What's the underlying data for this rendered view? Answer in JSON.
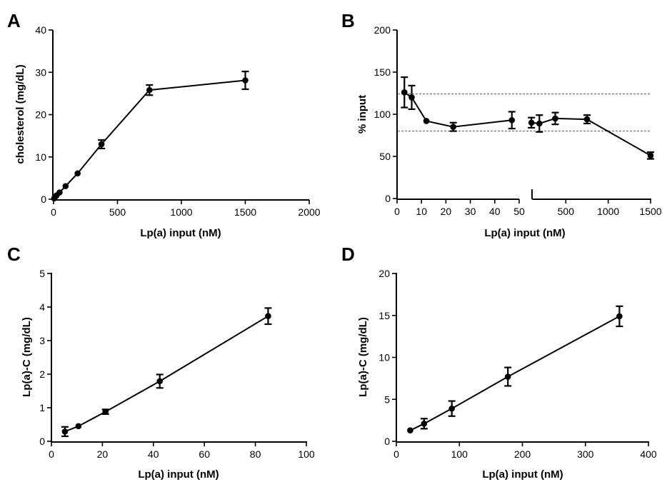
{
  "chart_data": [
    {
      "panel": "A",
      "type": "line",
      "xlabel": "Lp(a) input (nM)",
      "ylabel": "cholesterol (mg/dL)",
      "xlim": [
        0,
        2000
      ],
      "ylim": [
        0,
        40
      ],
      "xticks": [
        0,
        500,
        1000,
        1500,
        2000
      ],
      "yticks": [
        0,
        10,
        20,
        30,
        40
      ],
      "series": [
        {
          "x": [
            5,
            11,
            23,
            47,
            94,
            188,
            375,
            750,
            1500
          ],
          "y": [
            0.2,
            0.5,
            0.9,
            1.6,
            3.1,
            6.1,
            13.0,
            25.8,
            28.1
          ],
          "err": [
            0.1,
            0.1,
            0.2,
            0.3,
            0.3,
            0.4,
            1.0,
            1.2,
            2.1
          ]
        }
      ]
    },
    {
      "panel": "B",
      "type": "line",
      "xlabel": "Lp(a) input (nM)",
      "ylabel": "% input",
      "ylim": [
        0,
        200
      ],
      "yticks": [
        0,
        50,
        100,
        150,
        200
      ],
      "reference_lines": [
        80,
        124
      ],
      "segments": [
        {
          "xlim": [
            0,
            50
          ],
          "xticks": [
            0,
            10,
            20,
            30,
            40,
            50
          ],
          "x": [
            3,
            6,
            12,
            23,
            47
          ],
          "y": [
            126,
            120,
            92,
            85,
            93
          ],
          "err": [
            18,
            14,
            2,
            5,
            10
          ]
        },
        {
          "xlim": [
            0,
            1500
          ],
          "xticks": [
            500,
            1000,
            1500
          ],
          "x": [
            94,
            188,
            375,
            750,
            1500
          ],
          "y": [
            90,
            89,
            95,
            94,
            51
          ],
          "err": [
            6,
            10,
            7,
            5,
            4
          ]
        }
      ]
    },
    {
      "panel": "C",
      "type": "line",
      "xlabel": "Lp(a) input (nM)",
      "ylabel": "Lp(a)-C  (mg/dL)",
      "xlim": [
        0,
        100
      ],
      "ylim": [
        0,
        5
      ],
      "xticks": [
        0,
        20,
        40,
        60,
        80,
        100
      ],
      "yticks": [
        0,
        1,
        2,
        3,
        4,
        5
      ],
      "series": [
        {
          "x": [
            5.3,
            10.6,
            21.2,
            42.5,
            85
          ],
          "y": [
            0.29,
            0.45,
            0.88,
            1.79,
            3.73
          ],
          "err": [
            0.14,
            0.03,
            0.07,
            0.2,
            0.24
          ]
        }
      ]
    },
    {
      "panel": "D",
      "type": "line",
      "xlabel": "Lp(a) input (nM)",
      "ylabel": "Lp(a)-C  (mg/dL)",
      "xlim": [
        0,
        400
      ],
      "ylim": [
        0,
        20
      ],
      "xticks": [
        0,
        100,
        200,
        300,
        400
      ],
      "yticks": [
        0,
        5,
        10,
        15,
        20
      ],
      "series": [
        {
          "x": [
            22,
            44,
            88,
            177,
            354
          ],
          "y": [
            1.3,
            2.1,
            3.9,
            7.7,
            14.9
          ],
          "err": [
            0.1,
            0.6,
            0.9,
            1.1,
            1.2
          ]
        }
      ]
    }
  ]
}
